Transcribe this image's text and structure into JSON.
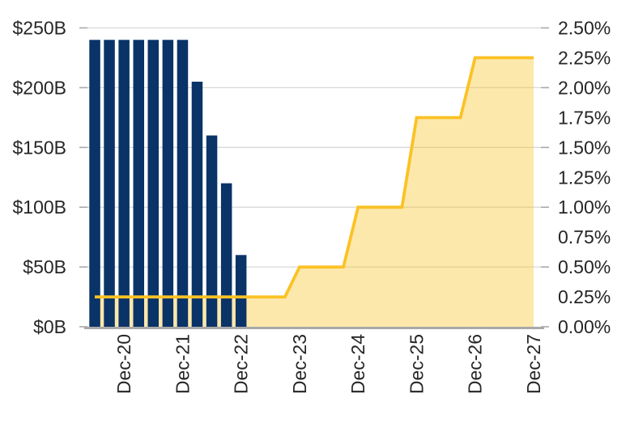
{
  "chart_data": {
    "type": "bar+line",
    "title": "",
    "legend": "none",
    "grid": "horizontal",
    "x": [
      "Jun-20",
      "Sep-20",
      "Dec-20",
      "Mar-21",
      "Jun-21",
      "Sep-21",
      "Dec-21",
      "Mar-22",
      "Jun-22",
      "Sep-22",
      "Dec-22",
      "Mar-23",
      "Jun-23",
      "Sep-23",
      "Dec-23",
      "Mar-24",
      "Jun-24",
      "Sep-24",
      "Dec-24",
      "Mar-25",
      "Jun-25",
      "Sep-25",
      "Dec-25",
      "Mar-26",
      "Jun-26",
      "Sep-26",
      "Dec-26",
      "Mar-27",
      "Jun-27",
      "Sep-27",
      "Dec-27"
    ],
    "x_axis": {
      "tick_labels": [
        "Dec-20",
        "Dec-21",
        "Dec-22",
        "Dec-23",
        "Dec-24",
        "Dec-25",
        "Dec-26",
        "Dec-27"
      ],
      "label_rotation_deg": -90
    },
    "left_axis": {
      "unit": "$B",
      "min": 0,
      "max": 250,
      "gridline_step": 50,
      "tick_labels": [
        "$250B",
        "$200B",
        "$150B",
        "$100B",
        "$50B",
        "$0B"
      ]
    },
    "right_axis": {
      "unit": "%",
      "min": 0,
      "max": 2.5,
      "label_step": 0.25,
      "tick_step": 0.5,
      "tick_labels": [
        "2.50%",
        "2.25%",
        "2.00%",
        "1.75%",
        "1.50%",
        "1.25%",
        "1.00%",
        "0.75%",
        "0.50%",
        "0.25%",
        "0.00%"
      ]
    },
    "series": [
      {
        "name": "quarterly-amount-bars",
        "type": "bar",
        "yaxis": "left",
        "color": "#0a3367",
        "values": [
          240,
          240,
          240,
          240,
          240,
          240,
          240,
          205,
          160,
          120,
          60,
          null,
          null,
          null,
          null,
          null,
          null,
          null,
          null,
          null,
          null,
          null,
          null,
          null,
          null,
          null,
          null,
          null,
          null,
          null,
          null
        ]
      },
      {
        "name": "rate-step-line",
        "type": "area-line",
        "yaxis": "right",
        "color": "#fbc226",
        "fill_color": "#fbc226",
        "fill_opacity": 0.38,
        "values": [
          0.25,
          0.25,
          0.25,
          0.25,
          0.25,
          0.25,
          0.25,
          0.25,
          0.25,
          0.25,
          0.25,
          0.25,
          0.25,
          0.25,
          0.5,
          0.5,
          0.5,
          0.5,
          1.0,
          1.0,
          1.0,
          1.0,
          1.75,
          1.75,
          1.75,
          1.75,
          2.25,
          2.25,
          2.25,
          2.25,
          2.25
        ]
      }
    ],
    "style": {
      "gridline_color": "#d9d9d9",
      "axis_line_color": "#a9a9a9",
      "tick_color": "#a9a9a9",
      "text_color": "#262626",
      "background": "#ffffff"
    }
  }
}
